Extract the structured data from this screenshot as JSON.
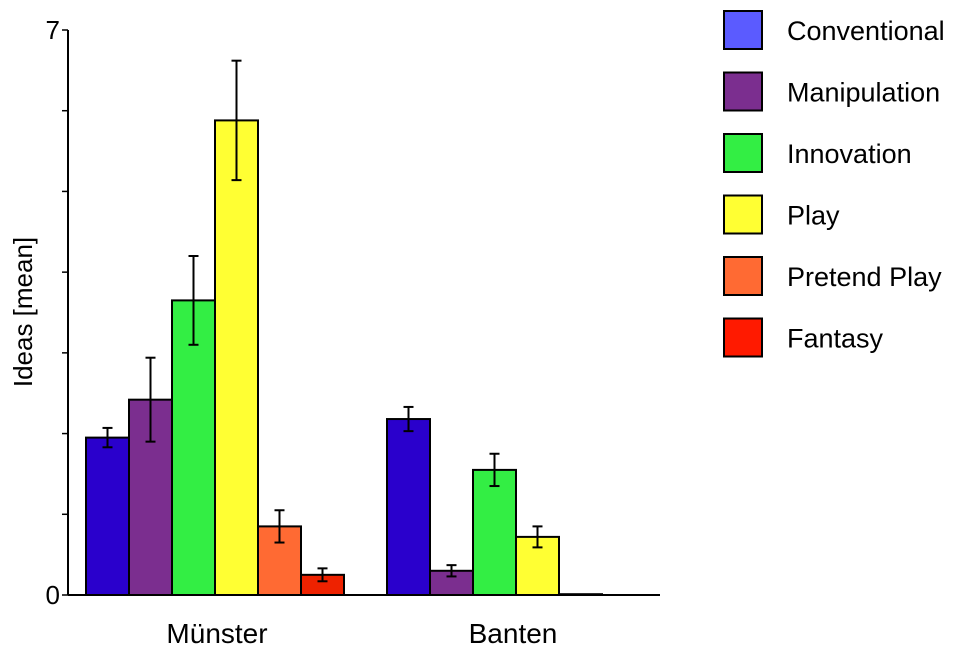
{
  "chart_data": {
    "type": "bar",
    "title": "",
    "xlabel": "",
    "ylabel": "Ideas [mean]",
    "ylim": [
      0,
      7
    ],
    "y_ticks": [
      0,
      7
    ],
    "grid": false,
    "legend_position": "right",
    "categories": [
      "Münster",
      "Banten"
    ],
    "series": [
      {
        "name": "Conventional",
        "color": "#2a00cc",
        "legend_color": "#5b5bff",
        "values": [
          1.95,
          2.18
        ],
        "errors": [
          0.12,
          0.15
        ]
      },
      {
        "name": "Manipulation",
        "color": "#7b2e8f",
        "legend_color": "#7b2e8f",
        "values": [
          2.42,
          0.3
        ],
        "errors": [
          0.52,
          0.07
        ]
      },
      {
        "name": "Innovation",
        "color": "#33ee44",
        "legend_color": "#33ee44",
        "values": [
          3.65,
          1.55
        ],
        "errors": [
          0.55,
          0.2
        ]
      },
      {
        "name": "Play",
        "color": "#ffff33",
        "legend_color": "#ffff33",
        "values": [
          5.88,
          0.72
        ],
        "errors": [
          0.74,
          0.13
        ]
      },
      {
        "name": "Pretend Play",
        "color": "#ff6a33",
        "legend_color": "#ff6a33",
        "values": [
          0.85,
          0.01
        ],
        "errors": [
          0.2,
          0.01
        ]
      },
      {
        "name": "Fantasy",
        "color": "#ee2200",
        "legend_color": "#ff1a00",
        "values": [
          0.25,
          0.0
        ],
        "errors": [
          0.08,
          0.005
        ]
      }
    ]
  }
}
